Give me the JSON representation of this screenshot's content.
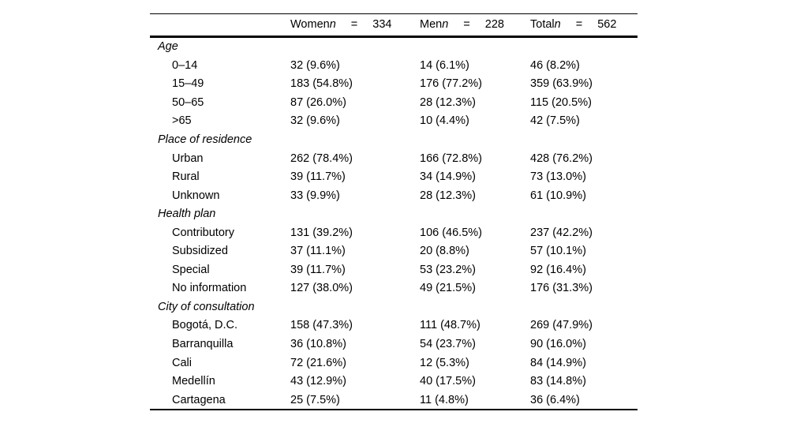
{
  "table": {
    "header": {
      "columns": [
        {
          "name": "Women",
          "n": "n",
          "eq": "=",
          "value": "334"
        },
        {
          "name": "Men",
          "n": "n",
          "eq": "=",
          "value": "228"
        },
        {
          "name": "Total",
          "n": "n",
          "eq": "=",
          "value": "562"
        }
      ]
    },
    "sections": [
      {
        "label": "Age",
        "rows": [
          {
            "label": "0–14",
            "women": "32 (9.6%)",
            "men": "14 (6.1%)",
            "total": "46 (8.2%)"
          },
          {
            "label": "15–49",
            "women": "183 (54.8%)",
            "men": "176 (77.2%)",
            "total": "359 (63.9%)"
          },
          {
            "label": "50–65",
            "women": "87 (26.0%)",
            "men": "28 (12.3%)",
            "total": "115 (20.5%)"
          },
          {
            "label": ">65",
            "women": "32 (9.6%)",
            "men": "10 (4.4%)",
            "total": "42 (7.5%)"
          }
        ]
      },
      {
        "label": "Place of residence",
        "rows": [
          {
            "label": "Urban",
            "women": "262 (78.4%)",
            "men": "166 (72.8%)",
            "total": "428 (76.2%)"
          },
          {
            "label": "Rural",
            "women": "39 (11.7%)",
            "men": "34 (14.9%)",
            "total": "73 (13.0%)"
          },
          {
            "label": "Unknown",
            "women": "33 (9.9%)",
            "men": "28 (12.3%)",
            "total": "61 (10.9%)"
          }
        ]
      },
      {
        "label": "Health plan",
        "rows": [
          {
            "label": "Contributory",
            "women": "131 (39.2%)",
            "men": "106 (46.5%)",
            "total": "237 (42.2%)"
          },
          {
            "label": "Subsidized",
            "women": "37 (11.1%)",
            "men": "20 (8.8%)",
            "total": "57 (10.1%)"
          },
          {
            "label": "Special",
            "women": "39 (11.7%)",
            "men": "53 (23.2%)",
            "total": "92 (16.4%)"
          },
          {
            "label": "No information",
            "women": "127 (38.0%)",
            "men": "49 (21.5%)",
            "total": "176 (31.3%)"
          }
        ]
      },
      {
        "label": "City of consultation",
        "rows": [
          {
            "label": "Bogotá, D.C.",
            "women": "158 (47.3%)",
            "men": "111 (48.7%)",
            "total": "269 (47.9%)"
          },
          {
            "label": "Barranquilla",
            "women": "36 (10.8%)",
            "men": "54 (23.7%)",
            "total": "90 (16.0%)"
          },
          {
            "label": "Cali",
            "women": "72 (21.6%)",
            "men": "12 (5.3%)",
            "total": "84 (14.9%)"
          },
          {
            "label": "Medellín",
            "women": "43 (12.9%)",
            "men": "40 (17.5%)",
            "total": "83 (14.8%)"
          },
          {
            "label": "Cartagena",
            "women": "25 (7.5%)",
            "men": "11 (4.8%)",
            "total": "36 (6.4%)"
          }
        ]
      }
    ]
  }
}
